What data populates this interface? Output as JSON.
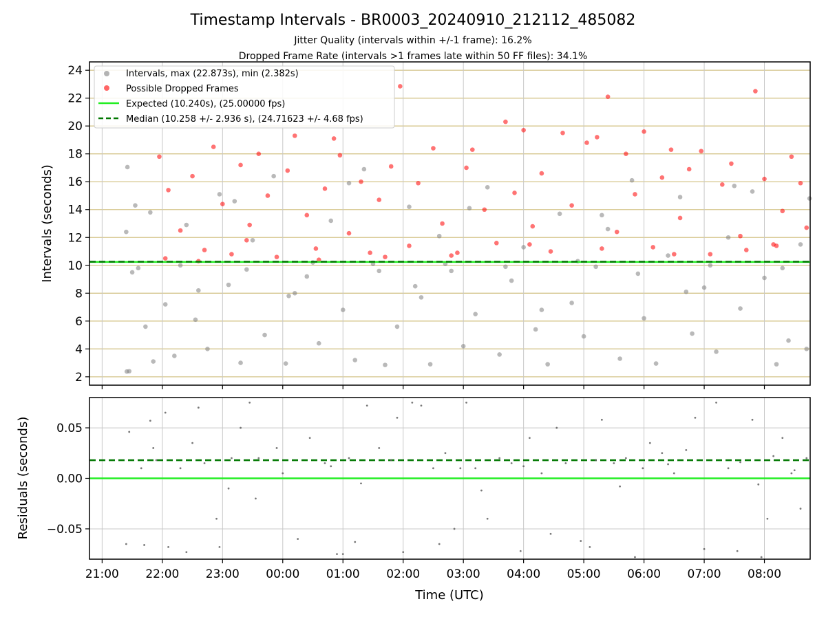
{
  "title": "Timestamp Intervals - BR0003_20240910_212112_485082",
  "subtitle_1": "Jitter Quality (intervals within +/-1 frame): 16.2%",
  "subtitle_2": "Dropped Frame Rate (intervals >1 frames late within 50 FF files): 34.1%",
  "colors": {
    "normal_points": "#808080",
    "dropped_points": "#ff0000",
    "expected_line": "#22ee22",
    "median_line": "#007700",
    "hgrid": "#d4c48a",
    "grid": "#c8c8c8"
  },
  "chart_data": [
    {
      "type": "scatter",
      "panel": "intervals",
      "ylabel": "Intervals (seconds)",
      "ylim": [
        1.4,
        24.6
      ],
      "yticks": [
        "2",
        "4",
        "6",
        "8",
        "10",
        "12",
        "14",
        "16",
        "18",
        "20",
        "22",
        "24"
      ],
      "grid": true,
      "legend_position": "top-left",
      "legend": [
        "Intervals, max (22.873s), min (2.382s)",
        "Possible Dropped Frames",
        "Expected (10.240s), (25.00000 fps)",
        "Median (10.258 +/- 2.936 s), (24.71623 +/- 4.68 fps)"
      ],
      "expected_interval": 10.24,
      "median_interval": 10.258,
      "max_interval": 22.873,
      "min_interval": 2.382,
      "series": [
        {
          "name": "Intervals, max (22.873s), min (2.382s)",
          "style": "gray",
          "points": [
            [
              21.41,
              2.38
            ],
            [
              21.45,
              2.4
            ],
            [
              21.42,
              17.05
            ],
            [
              21.4,
              12.4
            ],
            [
              21.55,
              14.3
            ],
            [
              21.6,
              9.8
            ],
            [
              21.72,
              5.6
            ],
            [
              21.85,
              3.1
            ],
            [
              22.05,
              7.2
            ],
            [
              22.2,
              3.5
            ],
            [
              22.4,
              12.9
            ],
            [
              22.55,
              6.1
            ],
            [
              22.75,
              4.0
            ],
            [
              22.95,
              15.1
            ],
            [
              23.1,
              8.6
            ],
            [
              23.3,
              3.0
            ],
            [
              23.5,
              11.8
            ],
            [
              23.7,
              5.0
            ],
            [
              23.85,
              16.4
            ],
            [
              24.05,
              2.95
            ],
            [
              24.2,
              8.0
            ],
            [
              24.4,
              9.2
            ],
            [
              24.6,
              4.4
            ],
            [
              24.8,
              13.2
            ],
            [
              25.0,
              6.8
            ],
            [
              25.2,
              3.2
            ],
            [
              25.35,
              16.9
            ],
            [
              25.5,
              10.1
            ],
            [
              25.7,
              2.85
            ],
            [
              25.9,
              5.6
            ],
            [
              26.1,
              14.2
            ],
            [
              26.3,
              7.7
            ],
            [
              26.45,
              2.9
            ],
            [
              26.6,
              12.1
            ],
            [
              26.8,
              9.6
            ],
            [
              27.0,
              4.2
            ],
            [
              27.2,
              6.5
            ],
            [
              27.4,
              15.6
            ],
            [
              27.6,
              3.6
            ],
            [
              27.8,
              8.9
            ],
            [
              28.0,
              11.3
            ],
            [
              28.2,
              5.4
            ],
            [
              28.4,
              2.9
            ],
            [
              28.6,
              13.7
            ],
            [
              28.8,
              7.3
            ],
            [
              29.0,
              4.9
            ],
            [
              29.2,
              9.9
            ],
            [
              29.4,
              12.6
            ],
            [
              29.6,
              3.3
            ],
            [
              29.8,
              16.1
            ],
            [
              30.0,
              6.2
            ],
            [
              30.2,
              2.95
            ],
            [
              30.4,
              10.7
            ],
            [
              30.6,
              14.9
            ],
            [
              30.8,
              5.1
            ],
            [
              31.0,
              8.4
            ],
            [
              31.2,
              3.8
            ],
            [
              31.4,
              12.0
            ],
            [
              31.6,
              6.9
            ],
            [
              31.8,
              15.3
            ],
            [
              32.0,
              9.1
            ],
            [
              32.2,
              2.9
            ],
            [
              32.4,
              4.6
            ],
            [
              32.6,
              11.5
            ],
            [
              21.5,
              9.5
            ],
            [
              22.3,
              10.0
            ],
            [
              23.4,
              9.7
            ],
            [
              24.5,
              10.2
            ],
            [
              25.6,
              9.6
            ],
            [
              26.7,
              10.1
            ],
            [
              27.7,
              9.9
            ],
            [
              28.9,
              10.3
            ],
            [
              29.9,
              9.4
            ],
            [
              31.1,
              10.0
            ],
            [
              32.3,
              9.8
            ],
            [
              22.6,
              8.2
            ],
            [
              24.1,
              7.8
            ],
            [
              26.2,
              8.5
            ],
            [
              28.3,
              6.8
            ],
            [
              30.7,
              8.1
            ],
            [
              21.8,
              13.8
            ],
            [
              23.2,
              14.6
            ],
            [
              25.1,
              15.9
            ],
            [
              27.1,
              14.1
            ],
            [
              29.3,
              13.6
            ],
            [
              31.5,
              15.7
            ],
            [
              32.75,
              14.8
            ],
            [
              32.7,
              4.0
            ]
          ]
        },
        {
          "name": "Possible Dropped Frames",
          "style": "red",
          "points": [
            [
              21.95,
              17.8
            ],
            [
              22.1,
              15.4
            ],
            [
              22.3,
              12.5
            ],
            [
              22.5,
              16.4
            ],
            [
              22.7,
              11.1
            ],
            [
              22.85,
              18.5
            ],
            [
              23.0,
              14.4
            ],
            [
              23.15,
              10.8
            ],
            [
              23.3,
              17.2
            ],
            [
              23.45,
              12.9
            ],
            [
              23.6,
              18.0
            ],
            [
              23.75,
              15.0
            ],
            [
              23.9,
              10.6
            ],
            [
              24.08,
              16.8
            ],
            [
              24.2,
              19.3
            ],
            [
              24.4,
              13.6
            ],
            [
              24.55,
              11.2
            ],
            [
              24.7,
              15.5
            ],
            [
              24.85,
              19.1
            ],
            [
              24.95,
              17.9
            ],
            [
              25.1,
              12.3
            ],
            [
              25.3,
              16.0
            ],
            [
              25.45,
              10.9
            ],
            [
              25.6,
              14.7
            ],
            [
              25.8,
              17.1
            ],
            [
              25.95,
              22.85
            ],
            [
              26.1,
              11.4
            ],
            [
              26.25,
              15.9
            ],
            [
              26.5,
              18.4
            ],
            [
              26.65,
              13.0
            ],
            [
              26.8,
              10.7
            ],
            [
              27.05,
              17.0
            ],
            [
              27.15,
              18.3
            ],
            [
              27.35,
              14.0
            ],
            [
              27.55,
              11.6
            ],
            [
              27.7,
              20.3
            ],
            [
              27.85,
              15.2
            ],
            [
              28.0,
              19.7
            ],
            [
              28.15,
              12.8
            ],
            [
              28.3,
              16.6
            ],
            [
              28.45,
              11.0
            ],
            [
              28.65,
              19.5
            ],
            [
              28.8,
              14.3
            ],
            [
              29.05,
              18.8
            ],
            [
              29.22,
              19.2
            ],
            [
              29.4,
              22.1
            ],
            [
              29.55,
              12.4
            ],
            [
              29.7,
              18.0
            ],
            [
              29.85,
              15.1
            ],
            [
              30.0,
              19.6
            ],
            [
              30.15,
              11.3
            ],
            [
              30.3,
              16.3
            ],
            [
              30.45,
              18.3
            ],
            [
              30.6,
              13.4
            ],
            [
              30.75,
              16.9
            ],
            [
              30.95,
              18.2
            ],
            [
              31.1,
              10.8
            ],
            [
              31.3,
              15.8
            ],
            [
              31.45,
              17.3
            ],
            [
              31.6,
              12.1
            ],
            [
              31.85,
              22.5
            ],
            [
              32.0,
              16.2
            ],
            [
              32.15,
              11.5
            ],
            [
              32.3,
              13.9
            ],
            [
              32.45,
              17.8
            ],
            [
              32.6,
              15.9
            ],
            [
              32.7,
              12.7
            ],
            [
              22.05,
              10.5
            ],
            [
              22.6,
              10.3
            ],
            [
              23.4,
              11.8
            ],
            [
              24.6,
              10.4
            ],
            [
              25.7,
              10.6
            ],
            [
              26.9,
              10.9
            ],
            [
              28.1,
              11.5
            ],
            [
              29.3,
              11.2
            ],
            [
              30.5,
              10.8
            ],
            [
              31.7,
              11.1
            ],
            [
              32.2,
              11.4
            ]
          ]
        }
      ]
    },
    {
      "type": "scatter",
      "panel": "residuals",
      "ylabel": "Residuals (seconds)",
      "xlabel": "Time (UTC)",
      "ylim": [
        -0.08,
        0.08
      ],
      "yticks": [
        "−0.05",
        "0.00",
        "0.05"
      ],
      "xticks": [
        "21:00",
        "22:00",
        "23:00",
        "00:00",
        "01:00",
        "02:00",
        "03:00",
        "04:00",
        "05:00",
        "06:00",
        "07:00",
        "08:00"
      ],
      "zero_line": 0.0,
      "median_offset": 0.018,
      "points": [
        [
          21.4,
          -0.065
        ],
        [
          21.45,
          0.046
        ],
        [
          21.65,
          0.01
        ],
        [
          21.7,
          -0.066
        ],
        [
          21.8,
          0.057
        ],
        [
          21.85,
          0.03
        ],
        [
          22.05,
          0.065
        ],
        [
          22.1,
          -0.068
        ],
        [
          22.3,
          0.01
        ],
        [
          22.4,
          -0.073
        ],
        [
          22.5,
          0.035
        ],
        [
          22.6,
          0.07
        ],
        [
          22.9,
          -0.04
        ],
        [
          22.95,
          -0.068
        ],
        [
          23.15,
          0.02
        ],
        [
          23.3,
          0.05
        ],
        [
          23.45,
          0.075
        ],
        [
          23.55,
          -0.02
        ],
        [
          23.9,
          0.03
        ],
        [
          24.0,
          0.005
        ],
        [
          24.25,
          -0.06
        ],
        [
          24.45,
          0.04
        ],
        [
          24.7,
          0.015
        ],
        [
          24.9,
          -0.075
        ],
        [
          25.0,
          -0.075
        ],
        [
          25.1,
          0.02
        ],
        [
          25.2,
          -0.063
        ],
        [
          25.4,
          0.072
        ],
        [
          25.6,
          0.03
        ],
        [
          25.9,
          0.06
        ],
        [
          26.0,
          -0.073
        ],
        [
          26.15,
          0.075
        ],
        [
          26.3,
          0.072
        ],
        [
          26.5,
          0.01
        ],
        [
          26.6,
          -0.065
        ],
        [
          26.7,
          0.025
        ],
        [
          26.85,
          -0.05
        ],
        [
          27.05,
          0.075
        ],
        [
          27.2,
          0.01
        ],
        [
          27.4,
          -0.04
        ],
        [
          27.6,
          0.02
        ],
        [
          27.8,
          0.015
        ],
        [
          27.95,
          -0.072
        ],
        [
          28.1,
          0.04
        ],
        [
          28.3,
          0.005
        ],
        [
          28.45,
          -0.055
        ],
        [
          28.55,
          0.05
        ],
        [
          28.7,
          0.015
        ],
        [
          28.95,
          -0.062
        ],
        [
          29.1,
          -0.068
        ],
        [
          29.3,
          0.058
        ],
        [
          29.5,
          0.015
        ],
        [
          29.7,
          0.02
        ],
        [
          29.85,
          -0.078
        ],
        [
          29.98,
          0.01
        ],
        [
          30.1,
          0.035
        ],
        [
          30.3,
          0.025
        ],
        [
          30.5,
          0.005
        ],
        [
          30.7,
          0.028
        ],
        [
          30.85,
          0.06
        ],
        [
          31.0,
          -0.07
        ],
        [
          31.2,
          0.075
        ],
        [
          31.4,
          0.01
        ],
        [
          31.55,
          -0.072
        ],
        [
          31.8,
          0.058
        ],
        [
          31.95,
          -0.078
        ],
        [
          32.05,
          -0.04
        ],
        [
          32.15,
          0.022
        ],
        [
          32.3,
          0.04
        ],
        [
          32.45,
          0.005
        ],
        [
          32.6,
          -0.03
        ],
        [
          32.7,
          0.02
        ],
        [
          21.9,
          0.018
        ],
        [
          22.7,
          0.015
        ],
        [
          23.6,
          0.02
        ],
        [
          24.8,
          0.012
        ],
        [
          25.8,
          0.018
        ],
        [
          26.95,
          0.01
        ],
        [
          28.0,
          0.012
        ],
        [
          29.2,
          0.018
        ],
        [
          30.4,
          0.014
        ],
        [
          31.6,
          0.016
        ],
        [
          32.5,
          0.008
        ],
        [
          23.1,
          -0.01
        ],
        [
          25.3,
          -0.005
        ],
        [
          27.3,
          -0.012
        ],
        [
          29.6,
          -0.008
        ],
        [
          31.9,
          -0.006
        ]
      ]
    }
  ]
}
